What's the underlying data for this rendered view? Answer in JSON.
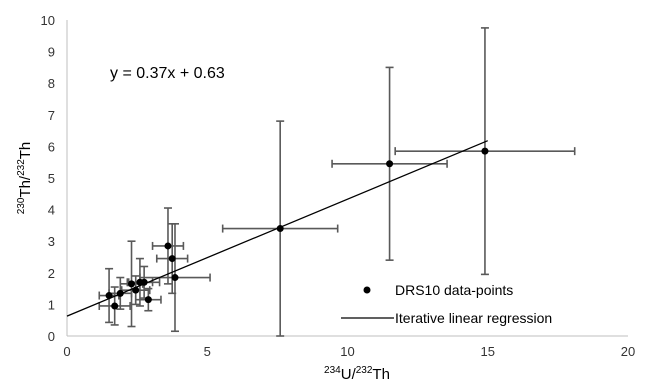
{
  "chart_data": {
    "type": "scatter",
    "title": "",
    "xlabel": {
      "sup1": "234",
      "main1": "U/",
      "sup2": "232",
      "main2": "Th"
    },
    "ylabel": {
      "sup1": "230",
      "main1": "Th/",
      "sup2": "232",
      "main2": "Th"
    },
    "xlim": [
      0,
      20
    ],
    "ylim": [
      0,
      10
    ],
    "xticks": [
      "0",
      "5",
      "10",
      "15",
      "20"
    ],
    "yticks": [
      "0",
      "1",
      "2",
      "3",
      "4",
      "5",
      "6",
      "7",
      "8",
      "9",
      "10"
    ],
    "equation": "y = 0.37x + 0.63",
    "series": [
      {
        "name": "DRS10 data-points",
        "marker": "circle",
        "color": "#000000",
        "error_bar_color": "#595959",
        "points": [
          {
            "x": 1.5,
            "y": 1.28,
            "xerr": 0.35,
            "yerr": 0.85
          },
          {
            "x": 1.7,
            "y": 0.95,
            "xerr": 0.55,
            "yerr": 0.6
          },
          {
            "x": 1.9,
            "y": 1.35,
            "xerr": 0.4,
            "yerr": 0.5
          },
          {
            "x": 2.3,
            "y": 1.65,
            "xerr": 0.4,
            "yerr": 1.35
          },
          {
            "x": 2.45,
            "y": 1.45,
            "xerr": 0.5,
            "yerr": 0.45
          },
          {
            "x": 2.6,
            "y": 1.7,
            "xerr": 0.45,
            "yerr": 0.75
          },
          {
            "x": 2.75,
            "y": 1.7,
            "xerr": 0.55,
            "yerr": 0.5
          },
          {
            "x": 2.9,
            "y": 1.15,
            "xerr": 0.45,
            "yerr": 0.35
          },
          {
            "x": 3.6,
            "y": 2.85,
            "xerr": 0.55,
            "yerr": 1.2
          },
          {
            "x": 3.75,
            "y": 2.45,
            "xerr": 0.55,
            "yerr": 1.1
          },
          {
            "x": 3.85,
            "y": 1.85,
            "xerr": 1.25,
            "yerr": 1.7
          },
          {
            "x": 7.6,
            "y": 3.4,
            "xerr": 2.05,
            "yerr": 3.4
          },
          {
            "x": 11.5,
            "y": 5.45,
            "xerr": 2.05,
            "yerr": 3.05
          },
          {
            "x": 14.9,
            "y": 5.85,
            "xerr": 3.2,
            "yerr": 3.9
          }
        ]
      },
      {
        "name": "Iterative linear regression",
        "type": "line",
        "color": "#000000",
        "slope": 0.37,
        "intercept": 0.63,
        "x_range": [
          0,
          15
        ]
      }
    ],
    "grid": false,
    "legend_position": "bottom-right"
  }
}
